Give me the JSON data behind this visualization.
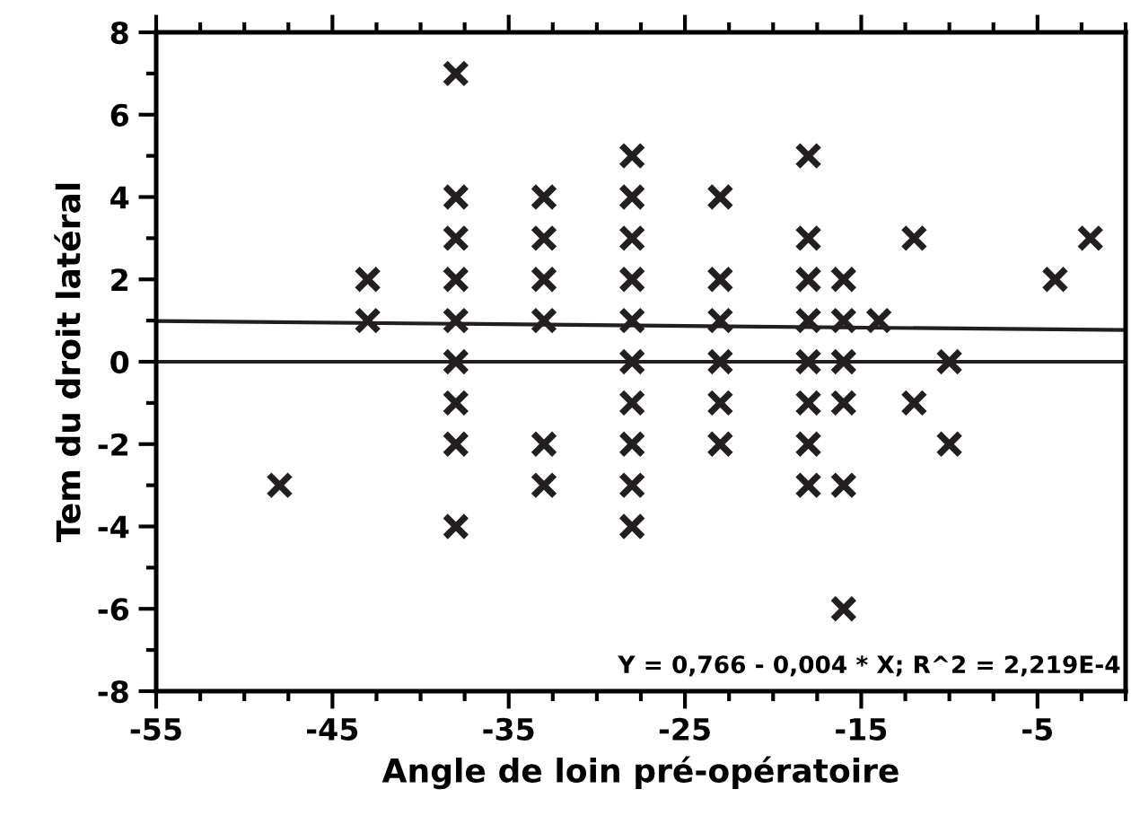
{
  "chart_data": {
    "type": "scatter",
    "xlabel": "Angle de loin pré-opératoire",
    "ylabel": "Tem du droit latéral",
    "marker": "cross",
    "grid": false,
    "xlim": [
      -55,
      0
    ],
    "xticks": [
      -55,
      -45,
      -35,
      -25,
      -15,
      -5
    ],
    "ylim": [
      -8,
      8
    ],
    "yticks": [
      -8,
      -6,
      -4,
      -2,
      0,
      2,
      4,
      6,
      8
    ],
    "series": [
      {
        "color": "#231f20",
        "x": [
          -48,
          -43,
          -43,
          -38,
          -38,
          -38,
          -38,
          -38,
          -38,
          -38,
          -38,
          -38,
          -33,
          -33,
          -33,
          -33,
          -33,
          -33,
          -28,
          -28,
          -28,
          -28,
          -28,
          -28,
          -28,
          -28,
          -28,
          -28,
          -23,
          -23,
          -23,
          -23,
          -23,
          -23,
          -18,
          -18,
          -18,
          -18,
          -18,
          -18,
          -18,
          -18,
          -16,
          -16,
          -16,
          -16,
          -16,
          -16,
          -14,
          -12,
          -12,
          -10,
          -10,
          -4,
          -2
        ],
        "values": [
          -3,
          2,
          1,
          7,
          4,
          3,
          2,
          1,
          0,
          -1,
          -2,
          -4,
          4,
          3,
          2,
          1,
          -2,
          -3,
          5,
          4,
          3,
          2,
          1,
          0,
          -1,
          -2,
          -3,
          -4,
          4,
          2,
          1,
          0,
          -1,
          -2,
          5,
          3,
          2,
          1,
          0,
          -1,
          -2,
          -3,
          2,
          1,
          0,
          -1,
          -3,
          -6,
          1,
          3,
          -1,
          0,
          -2,
          2,
          3
        ]
      },
      {
        "type": "line",
        "color": "#231f20",
        "x": [
          -55,
          0
        ],
        "values": [
          0.99,
          0.77
        ],
        "marker": "none"
      }
    ],
    "ref_lines": [
      {
        "axis": "y",
        "value": 0,
        "color": "#231f20"
      }
    ],
    "annotations": [
      {
        "text": "Y = 0,766 - 0,004 * X; R^2 = 2,219E-4"
      }
    ]
  }
}
